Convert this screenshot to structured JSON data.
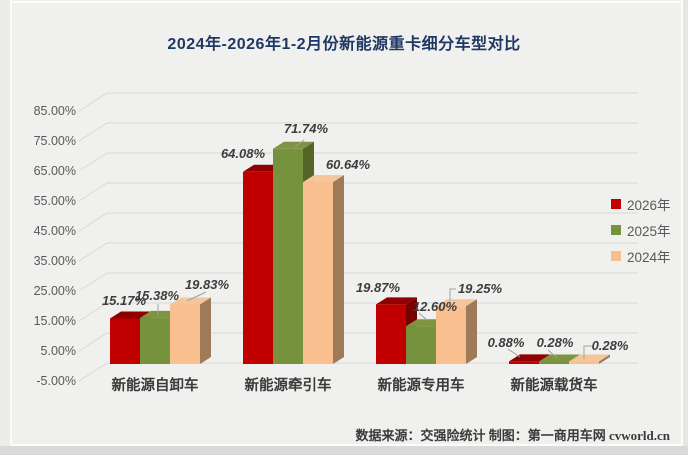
{
  "title": "2024年-2026年1-2月份新能源重卡细分车型对比",
  "source_note": "数据来源：交强险统计 制图：第一商用车网 cvworld.cn",
  "chart_data": {
    "type": "bar",
    "style": "3d-column",
    "title": "2024年-2026年1-2月份新能源重卡细分车型对比",
    "categories": [
      "新能源自卸车",
      "新能源牵引车",
      "新能源专用车",
      "新能源载货车"
    ],
    "series": [
      {
        "name": "2026年",
        "color": "#c00000",
        "values": [
          15.17,
          64.08,
          19.87,
          0.88
        ],
        "labels": [
          "15.17%",
          "64.08%",
          "19.87%",
          "0.88%"
        ]
      },
      {
        "name": "2025年",
        "color": "#76923c",
        "values": [
          15.38,
          71.74,
          12.6,
          0.28
        ],
        "labels": [
          "15.38%",
          "71.74%",
          "12.60%",
          "0.28%"
        ]
      },
      {
        "name": "2024年",
        "color": "#fabf8f",
        "values": [
          19.83,
          60.64,
          19.25,
          0.28
        ],
        "labels": [
          "19.83%",
          "60.64%",
          "19.25%",
          "0.28%"
        ]
      }
    ],
    "y_ticks": [
      "85.00%",
      "75.00%",
      "65.00%",
      "55.00%",
      "45.00%",
      "35.00%",
      "25.00%",
      "15.00%",
      "5.00%",
      "-5.00%"
    ],
    "ylim": [
      -5,
      90
    ],
    "ylabel": "",
    "xlabel": "",
    "grid": true,
    "legend_position": "right"
  }
}
